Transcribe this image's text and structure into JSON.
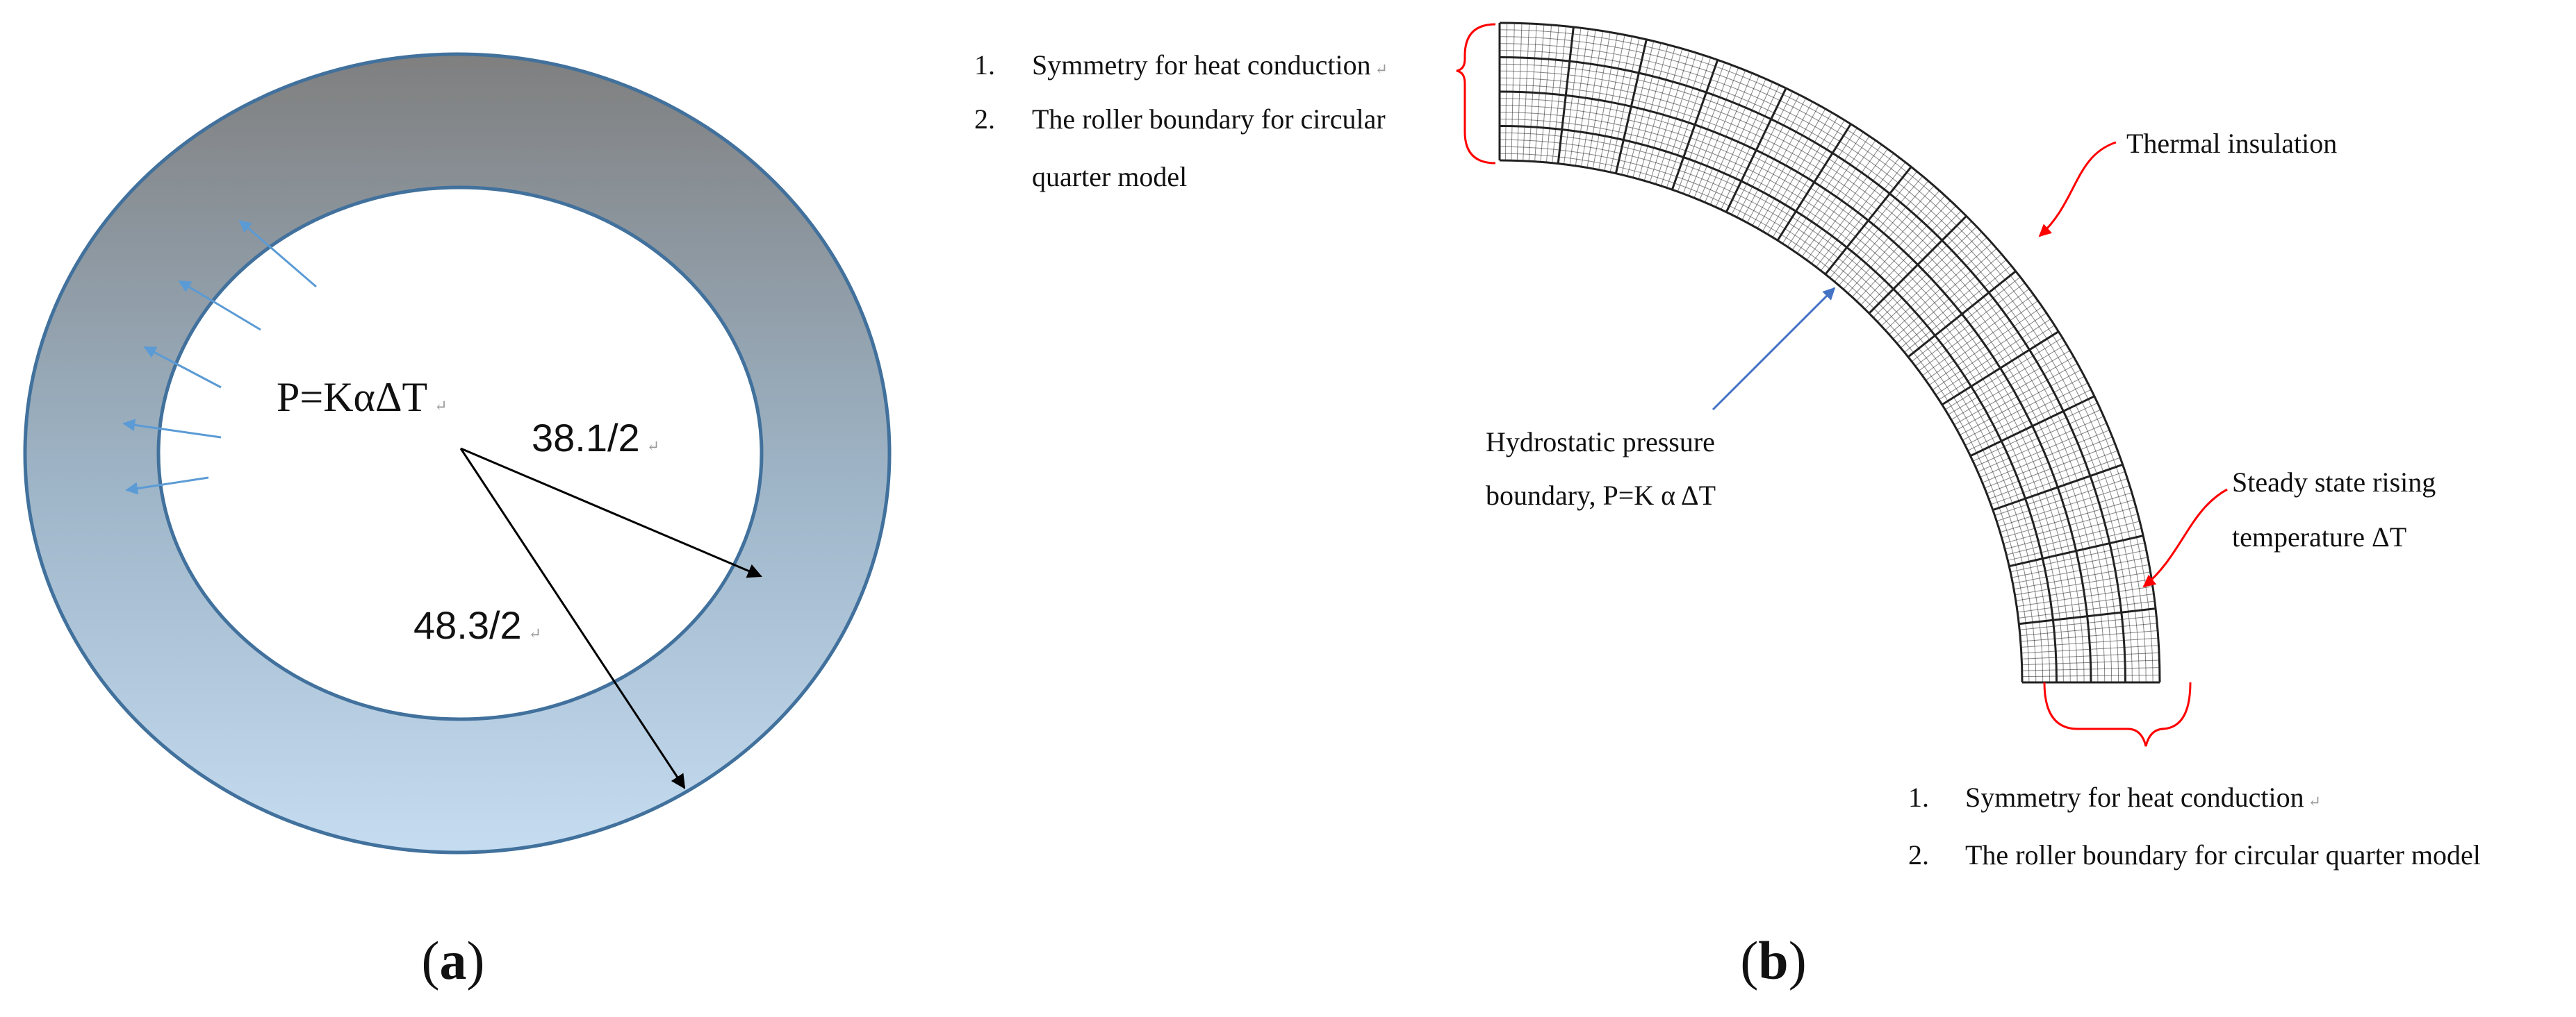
{
  "panel_a": {
    "caption_prefix": "(",
    "caption_letter": "a",
    "caption_suffix": ")",
    "pressure_label": "P=KαΔT",
    "inner_radius_label": "38.1/2",
    "outer_radius_label": "48.3/2",
    "para_mark": "↵",
    "colors": {
      "ring_top": "#7f7f7f",
      "ring_bottom": "#bdd7ee",
      "ring_stroke": "#41719c",
      "pressure_arrow": "#5b9bd5"
    }
  },
  "panel_b": {
    "caption_prefix": "(",
    "caption_letter": "b",
    "caption_suffix": ")",
    "top_boundary": [
      {
        "num": "1.",
        "text": "Symmetry for heat conduction"
      },
      {
        "num": "2.",
        "text": "The roller boundary for circular"
      },
      {
        "num": "",
        "text": "quarter model"
      }
    ],
    "bottom_boundary": [
      {
        "num": "1.",
        "text": "Symmetry for heat conduction"
      },
      {
        "num": "2.",
        "text": "The roller boundary for circular quarter model"
      }
    ],
    "thermal_label": "Thermal insulation",
    "pressure_label_line1": "Hydrostatic pressure",
    "pressure_label_line2": "boundary, P=K α ΔT",
    "temperature_label_line1": "Steady state rising",
    "temperature_label_line2": "temperature  ΔT",
    "para_mark": "↵",
    "colors": {
      "bracket": "#ff0000",
      "red_arrow": "#ff0000",
      "blue_arrow": "#4472c4",
      "mesh": "#222222"
    }
  }
}
